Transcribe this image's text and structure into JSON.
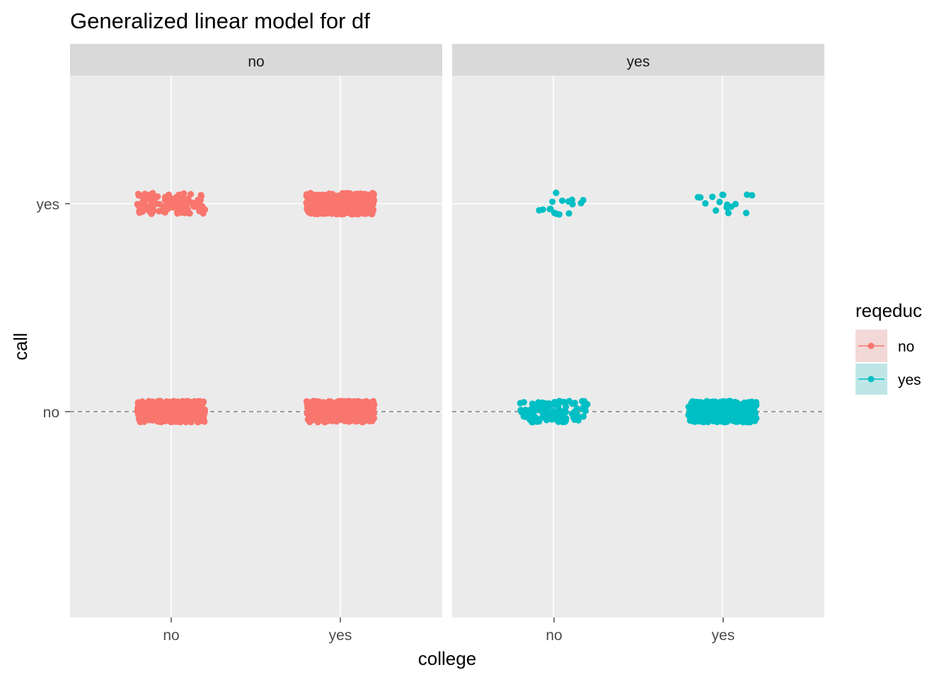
{
  "chart_data": {
    "type": "scatter",
    "title": "Generalized linear model for df",
    "xlabel": "college",
    "ylabel": "call",
    "x_categories": [
      "no",
      "yes"
    ],
    "y_categories": [
      "no",
      "yes"
    ],
    "facet_variable": "reqeduc",
    "facets": [
      "no",
      "yes"
    ],
    "jitter": true,
    "reference_line": {
      "y": "no",
      "style": "dashed",
      "color": "#808080"
    },
    "legend": {
      "title": "reqeduc",
      "position": "right",
      "entries": [
        {
          "label": "no",
          "color": "#F8766D"
        },
        {
          "label": "yes",
          "color": "#00BFC4"
        }
      ]
    },
    "groups": [
      {
        "facet": "no",
        "college": "no",
        "call": "no",
        "color": "#F8766D",
        "density": "dense"
      },
      {
        "facet": "no",
        "college": "no",
        "call": "yes",
        "color": "#F8766D",
        "density": "medium"
      },
      {
        "facet": "no",
        "college": "yes",
        "call": "no",
        "color": "#F8766D",
        "density": "dense"
      },
      {
        "facet": "no",
        "college": "yes",
        "call": "yes",
        "color": "#F8766D",
        "density": "dense"
      },
      {
        "facet": "yes",
        "college": "no",
        "call": "no",
        "color": "#00BFC4",
        "density": "medium"
      },
      {
        "facet": "yes",
        "college": "no",
        "call": "yes",
        "color": "#00BFC4",
        "density": "sparse"
      },
      {
        "facet": "yes",
        "college": "yes",
        "call": "no",
        "color": "#00BFC4",
        "density": "dense"
      },
      {
        "facet": "yes",
        "college": "yes",
        "call": "yes",
        "color": "#00BFC4",
        "density": "sparse"
      }
    ],
    "grid": true,
    "panel_background": "#EBEBEB",
    "strip_background": "#D9D9D9"
  }
}
